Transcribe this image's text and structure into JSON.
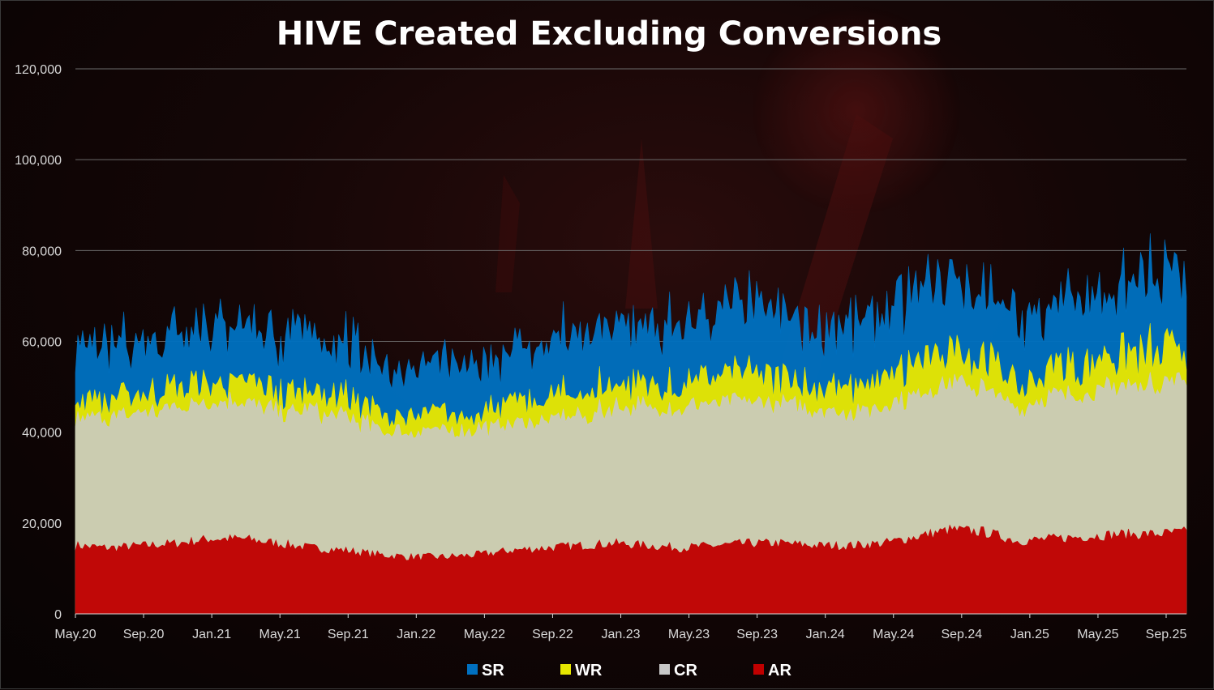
{
  "chart_data": {
    "type": "area",
    "stacked": true,
    "title": "HIVE Created Excluding Conversions",
    "xlabel": "",
    "ylabel": "",
    "ylim": [
      0,
      120000
    ],
    "yticks": [
      0,
      20000,
      40000,
      60000,
      80000,
      100000,
      120000
    ],
    "ytick_labels": [
      "0",
      "20,000",
      "40,000",
      "60,000",
      "80,000",
      "100,000",
      "120,000"
    ],
    "xtick_labels": [
      "May.20",
      "Sep.20",
      "Jan.21",
      "May.21",
      "Sep.21",
      "Jan.22",
      "May.22",
      "Sep.22",
      "Jan.23",
      "May.23",
      "Sep.23",
      "Jan.24",
      "May.24",
      "Sep.24",
      "Jan.25",
      "May.25",
      "Sep.25"
    ],
    "grid": true,
    "legend_position": "bottom",
    "x": [
      "May.20",
      "Jul.20",
      "Sep.20",
      "Nov.20",
      "Jan.21",
      "Mar.21",
      "May.21",
      "Jul.21",
      "Sep.21",
      "Nov.21",
      "Jan.22",
      "Mar.22",
      "May.22",
      "Jul.22",
      "Sep.22",
      "Nov.22",
      "Jan.23",
      "Mar.23",
      "May.23",
      "Jul.23",
      "Sep.23",
      "Nov.23",
      "Jan.24",
      "Mar.24",
      "May.24",
      "Jul.24",
      "Sep.24",
      "Nov.24",
      "Jan.25",
      "Mar.25",
      "May.25",
      "Jul.25",
      "Sep.25",
      "Oct.25"
    ],
    "series": [
      {
        "name": "AR",
        "color": "#c00000",
        "values": [
          15000,
          14500,
          15000,
          15500,
          16500,
          16500,
          15500,
          14500,
          14000,
          13000,
          12500,
          12500,
          13000,
          14000,
          14500,
          15000,
          15500,
          15000,
          14500,
          15000,
          15500,
          15500,
          15000,
          15000,
          15500,
          17000,
          18500,
          18000,
          16000,
          16500,
          17000,
          17500,
          17500,
          18000
        ]
      },
      {
        "name": "CR",
        "color": "#c8c8c8",
        "values": [
          28000,
          28500,
          29000,
          30000,
          30500,
          30000,
          29000,
          30000,
          29500,
          27500,
          27500,
          27500,
          27500,
          28000,
          28000,
          28500,
          30000,
          30500,
          31000,
          31000,
          31000,
          30500,
          30000,
          29500,
          30000,
          31500,
          32000,
          31500,
          29500,
          31000,
          32000,
          32500,
          33000,
          33000
        ]
      },
      {
        "name": "WR",
        "color": "#e6e600",
        "values": [
          4000,
          4000,
          4000,
          4500,
          4500,
          4500,
          4000,
          4500,
          4500,
          3500,
          3500,
          3500,
          4000,
          4500,
          4500,
          5000,
          5500,
          5000,
          5000,
          5500,
          6000,
          5500,
          5500,
          5500,
          6000,
          7000,
          7500,
          7000,
          5000,
          6000,
          7000,
          7000,
          7000,
          7000
        ]
      },
      {
        "name": "SR",
        "color": "#0070c0",
        "values": [
          11000,
          11500,
          12000,
          13000,
          13500,
          12500,
          12000,
          12500,
          12000,
          11000,
          10000,
          10500,
          11000,
          11500,
          12000,
          12500,
          13000,
          12500,
          13000,
          13500,
          14000,
          13500,
          13500,
          13500,
          14000,
          15000,
          16000,
          15000,
          13500,
          14500,
          15000,
          15500,
          16000,
          16000
        ]
      }
    ]
  },
  "legend": {
    "items": [
      {
        "label": "SR",
        "color": "#0070c0"
      },
      {
        "label": "WR",
        "color": "#e6e600"
      },
      {
        "label": "CR",
        "color": "#c8c8c8"
      },
      {
        "label": "AR",
        "color": "#c00000"
      }
    ]
  }
}
